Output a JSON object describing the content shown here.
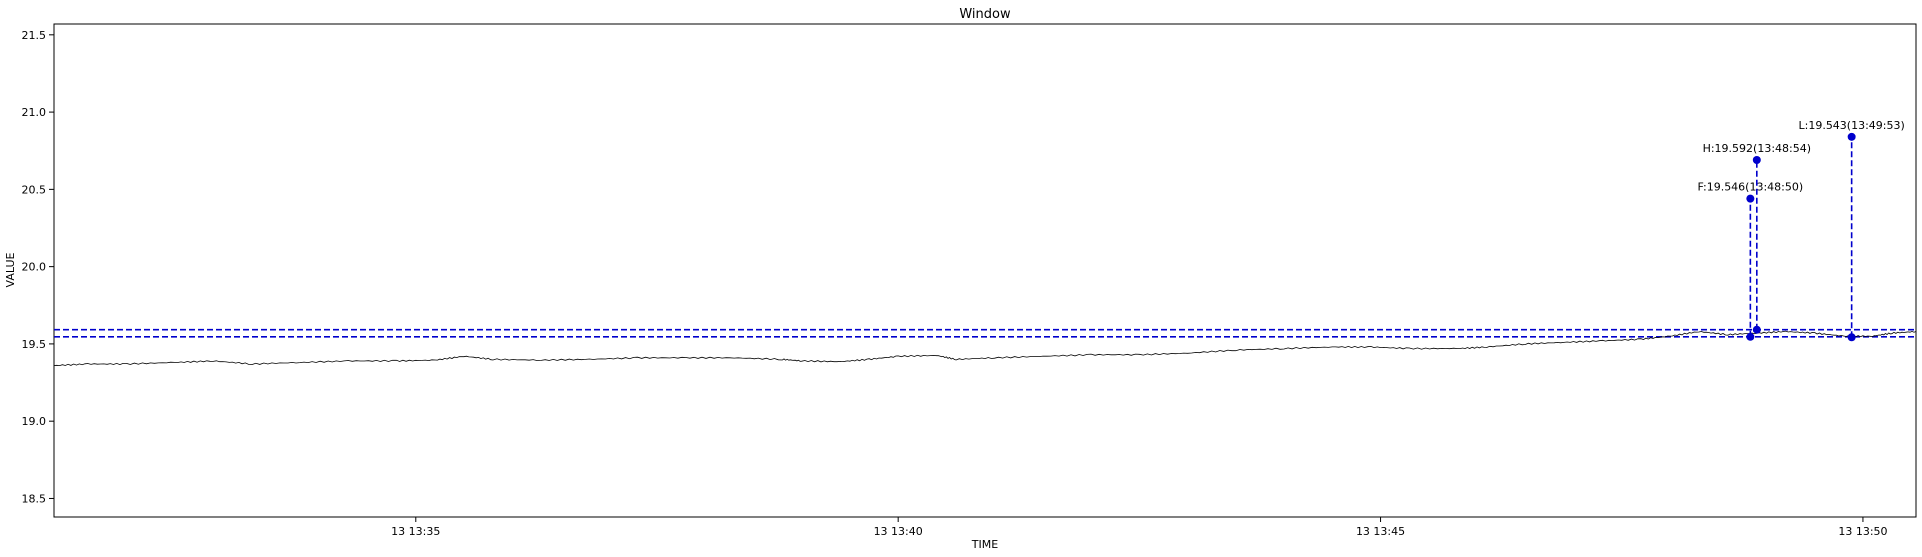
{
  "chart_data": {
    "type": "line",
    "title": "Window",
    "xlabel": "TIME",
    "ylabel": "VALUE",
    "x_tick_labels": [
      "13 13:35",
      "13 13:40",
      "13 13:45",
      "13 13:50"
    ],
    "x_tick_minutes": [
      35,
      40,
      45,
      50
    ],
    "xlim_minutes": [
      31.25,
      50.55
    ],
    "ylim": [
      18.38,
      21.57
    ],
    "y_ticks": [
      18.5,
      19.0,
      19.5,
      20.0,
      20.5,
      21.0,
      21.5
    ],
    "y_tick_labels": [
      "18.5",
      "19.0",
      "19.5",
      "20.0",
      "20.5",
      "21.0",
      "21.5"
    ],
    "series": [
      {
        "color": "#000000",
        "points": [
          [
            31.25,
            19.36
          ],
          [
            31.6,
            19.37
          ],
          [
            32.0,
            19.37
          ],
          [
            32.5,
            19.38
          ],
          [
            32.9,
            19.39
          ],
          [
            33.3,
            19.37
          ],
          [
            33.8,
            19.38
          ],
          [
            34.3,
            19.39
          ],
          [
            34.8,
            19.39
          ],
          [
            35.2,
            19.395
          ],
          [
            35.5,
            19.42
          ],
          [
            35.8,
            19.4
          ],
          [
            36.3,
            19.395
          ],
          [
            36.8,
            19.4
          ],
          [
            37.3,
            19.41
          ],
          [
            37.8,
            19.41
          ],
          [
            38.3,
            19.41
          ],
          [
            38.8,
            19.4
          ],
          [
            39.0,
            19.39
          ],
          [
            39.4,
            19.385
          ],
          [
            39.7,
            19.4
          ],
          [
            40.0,
            19.42
          ],
          [
            40.4,
            19.425
          ],
          [
            40.6,
            19.4
          ],
          [
            41.0,
            19.41
          ],
          [
            41.5,
            19.42
          ],
          [
            42.0,
            19.43
          ],
          [
            42.5,
            19.43
          ],
          [
            43.0,
            19.44
          ],
          [
            43.5,
            19.46
          ],
          [
            44.0,
            19.47
          ],
          [
            44.5,
            19.48
          ],
          [
            44.9,
            19.48
          ],
          [
            45.3,
            19.47
          ],
          [
            45.8,
            19.47
          ],
          [
            46.1,
            19.48
          ],
          [
            46.5,
            19.5
          ],
          [
            46.9,
            19.51
          ],
          [
            47.3,
            19.52
          ],
          [
            47.7,
            19.53
          ],
          [
            48.0,
            19.55
          ],
          [
            48.3,
            19.58
          ],
          [
            48.6,
            19.56
          ],
          [
            48.9,
            19.57
          ],
          [
            49.2,
            19.58
          ],
          [
            49.5,
            19.57
          ],
          [
            49.8,
            19.55
          ],
          [
            50.1,
            19.55
          ],
          [
            50.3,
            19.57
          ],
          [
            50.55,
            19.58
          ]
        ]
      }
    ],
    "h_lines": [
      {
        "y": 19.592,
        "color": "#0000cc",
        "style": "dashed"
      },
      {
        "y": 19.546,
        "color": "#0000cc",
        "style": "dashed"
      }
    ],
    "annotations": [
      {
        "label": "F:19.546(13:48:50)",
        "x": 48.833,
        "y": 19.546,
        "y_marker": 20.44
      },
      {
        "label": "H:19.592(13:48:54)",
        "x": 48.9,
        "y": 19.592,
        "y_marker": 20.69
      },
      {
        "label": "L:19.543(13:49:53)",
        "x": 49.883,
        "y": 19.543,
        "y_marker": 20.84
      }
    ],
    "marker_color": "#0000cc",
    "grid": false
  }
}
